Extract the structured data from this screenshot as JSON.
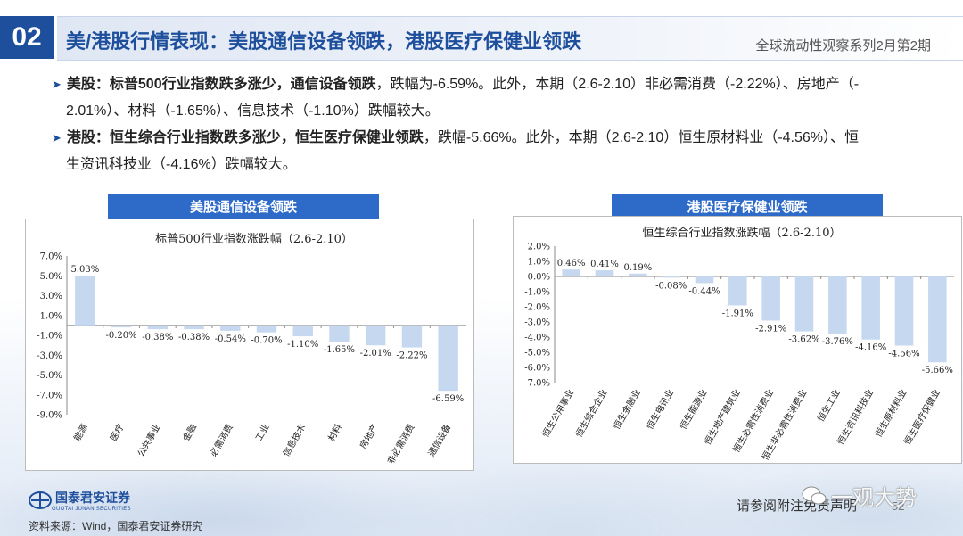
{
  "header": {
    "number": "02",
    "title": "美/港股行情表现：美股通信设备领跌，港股医疗保健业领跌",
    "series_label": "全球流动性观察系列2月第2期"
  },
  "bullets": [
    {
      "lead": "美股：标普500行业指数跌多涨少，通信设备领跌",
      "text1": "，跌幅为-6.59%。此外，本期（2.6-2.10）非必需消费（-2.22%）、房地产（-",
      "text2": "2.01%）、材料（-1.65%）、信息技术（-1.10%）跌幅较大。"
    },
    {
      "lead": "港股：恒生综合行业指数跌多涨少，恒生医疗保健业领跌",
      "text1": "，跌幅-5.66%。此外，本期（2.6-2.10）恒生原材料业（-4.56%）、恒",
      "text2": "生资讯科技业（-4.16%）跌幅较大。"
    }
  ],
  "charts": {
    "us_header": "美股通信设备领跌",
    "hk_header": "港股医疗保健业领跌"
  },
  "chart_data": [
    {
      "type": "bar",
      "title": "标普500行业指数涨跌幅（2.6-2.10）",
      "categories": [
        "能源",
        "医疗",
        "公共事业",
        "金融",
        "必需消费",
        "工业",
        "信息技术",
        "材料",
        "房地产",
        "非必需消费",
        "通信设备"
      ],
      "values": [
        5.03,
        -0.2,
        -0.38,
        -0.38,
        -0.54,
        -0.7,
        -1.1,
        -1.65,
        -2.01,
        -2.22,
        -6.59
      ],
      "value_labels": [
        "5.03%",
        "-0.20%",
        "-0.38%",
        "-0.38%",
        "-0.54%",
        "-0.70%",
        "-1.10%",
        "-1.65%",
        "-2.01%",
        "-2.22%",
        "-6.59%"
      ],
      "ylim": [
        -9.0,
        7.0
      ],
      "yticks": [
        7.0,
        5.0,
        3.0,
        1.0,
        -1.0,
        -3.0,
        -5.0,
        -7.0,
        -9.0
      ],
      "ytick_labels": [
        "7.0%",
        "5.0%",
        "3.0%",
        "1.0%",
        "-1.0%",
        "-3.0%",
        "-5.0%",
        "-7.0%",
        "-9.0%"
      ],
      "bar_color": "#c5d8ef",
      "grid": false
    },
    {
      "type": "bar",
      "title": "恒生综合行业指数涨跌幅（2.6-2.10）",
      "categories": [
        "恒生公用事业",
        "恒生综合企业",
        "恒生金融业",
        "恒生电讯业",
        "恒生能源业",
        "恒生地产建筑业",
        "恒生必需性消费业",
        "恒生非必需性消费业",
        "恒生工业",
        "恒生资讯科技业",
        "恒生原材料业",
        "恒生医疗保健业"
      ],
      "values": [
        0.46,
        0.41,
        0.19,
        -0.08,
        -0.44,
        -1.91,
        -2.91,
        -3.62,
        -3.76,
        -4.16,
        -4.56,
        -5.66
      ],
      "value_labels": [
        "0.46%",
        "0.41%",
        "0.19%",
        "-0.08%",
        "-0.44%",
        "-1.91%",
        "-2.91%",
        "-3.62%",
        "-3.76%",
        "-4.16%",
        "-4.56%",
        "-5.66%"
      ],
      "ylim": [
        -7.0,
        2.0
      ],
      "yticks": [
        2.0,
        1.0,
        0.0,
        -1.0,
        -2.0,
        -3.0,
        -4.0,
        -5.0,
        -6.0,
        -7.0
      ],
      "ytick_labels": [
        "2.0%",
        "1.0%",
        "0.0%",
        "-1.0%",
        "-2.0%",
        "-3.0%",
        "-4.0%",
        "-5.0%",
        "-6.0%",
        "-7.0%"
      ],
      "bar_color": "#c5d8ef",
      "grid": false
    }
  ],
  "footer": {
    "logo_name": "国泰君安证券",
    "logo_en": "GUOTAI JUNAN SECURITIES",
    "source": "资料来源：Wind，国泰君安证券研究",
    "disclaimer": "请参阅附注免责声明",
    "page": "52",
    "watermark": "一观大势"
  }
}
